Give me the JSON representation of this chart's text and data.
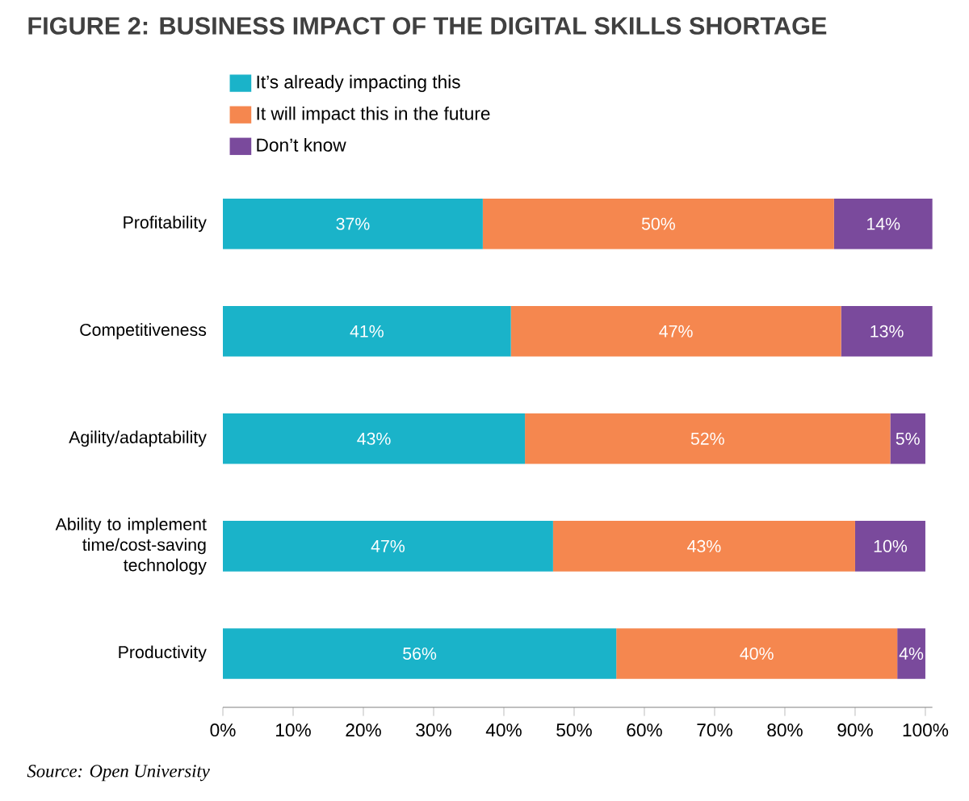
{
  "chart_data": {
    "type": "bar",
    "orientation": "horizontal",
    "stacked": true,
    "title": "FIGURE 2: BUSINESS IMPACT OF THE DIGITAL SKILLS SHORTAGE",
    "categories": [
      "Profitability",
      "Competitiveness",
      "Agility/adaptability",
      "Ability to implement time/cost-saving technology",
      "Productivity"
    ],
    "series": [
      {
        "name": "It’s already impacting this",
        "color": "#1ab3c9",
        "values": [
          37,
          41,
          43,
          47,
          56
        ],
        "value_labels": [
          "37%",
          "41%",
          "43%",
          "47%",
          "56%"
        ]
      },
      {
        "name": "It will impact this in the future",
        "color": "#f5874f",
        "values": [
          50,
          47,
          52,
          43,
          40
        ],
        "value_labels": [
          "50%",
          "47%",
          "52%",
          "43%",
          "40%"
        ]
      },
      {
        "name": "Don’t know",
        "color": "#7a4a9c",
        "values": [
          14,
          13,
          5,
          10,
          4
        ],
        "value_labels": [
          "14%",
          "13%",
          "5%",
          "10%",
          "4%"
        ]
      }
    ],
    "xlim": [
      0,
      101
    ],
    "xticks": [
      {
        "value": 0,
        "label": "0%"
      },
      {
        "value": 10,
        "label": "10%"
      },
      {
        "value": 20,
        "label": "20%"
      },
      {
        "value": 30,
        "label": "30%"
      },
      {
        "value": 40,
        "label": "40%"
      },
      {
        "value": 50,
        "label": "50%"
      },
      {
        "value": 60,
        "label": "60%"
      },
      {
        "value": 70,
        "label": "70%"
      },
      {
        "value": 80,
        "label": "80%"
      },
      {
        "value": 90,
        "label": "90%"
      },
      {
        "value": 100,
        "label": "100%"
      }
    ],
    "legend": "top left",
    "annotations": [
      "*Source: Open University*"
    ]
  }
}
